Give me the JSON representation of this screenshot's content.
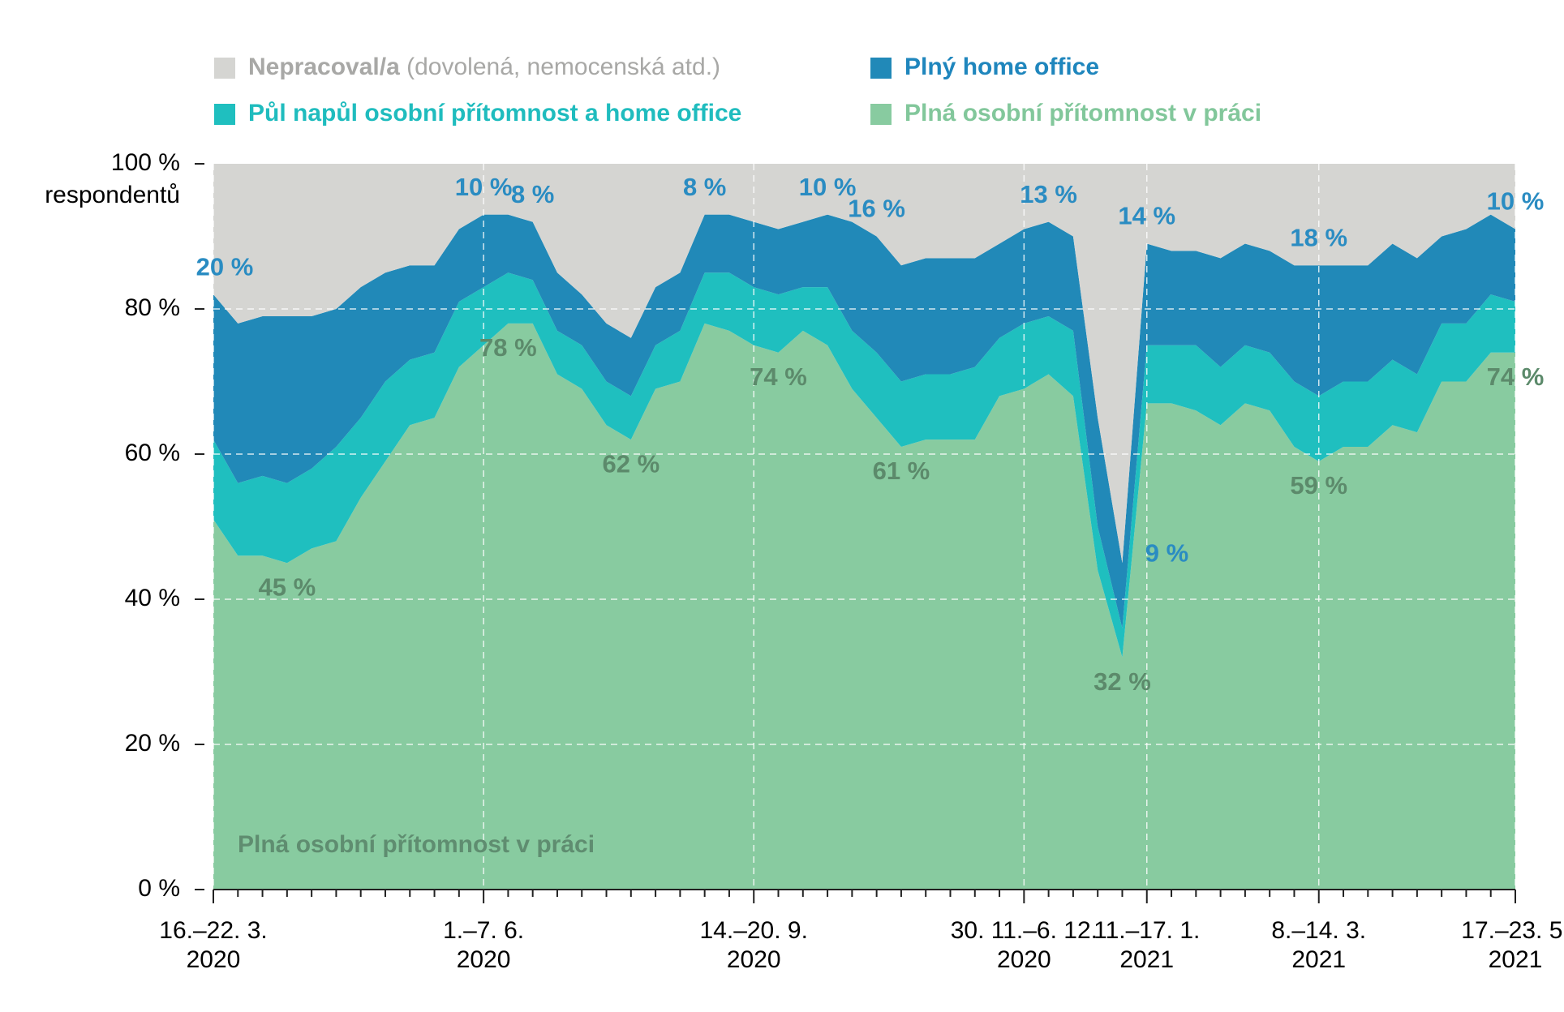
{
  "chart_data": {
    "type": "stacked-area",
    "y_label": "respondentů",
    "annotation": "Plná osobní přítomnost v práci",
    "categories": [
      [
        "16.–22. 3.",
        "2020"
      ],
      null,
      null,
      null,
      null,
      null,
      null,
      null,
      null,
      null,
      null,
      [
        "1.–7. 6.",
        "2020"
      ],
      null,
      null,
      null,
      null,
      null,
      null,
      null,
      null,
      null,
      null,
      [
        "14.–20. 9.",
        "2020"
      ],
      null,
      null,
      null,
      null,
      null,
      null,
      null,
      null,
      null,
      null,
      [
        "30. 11.–6. 12.",
        "2020"
      ],
      null,
      null,
      null,
      null,
      [
        "11.–17. 1.",
        "2021"
      ],
      null,
      null,
      null,
      null,
      null,
      null,
      [
        "8.–14. 3.",
        "2021"
      ],
      null,
      null,
      null,
      null,
      null,
      null,
      null,
      [
        "17.–23. 5.",
        "2021"
      ]
    ],
    "series": [
      {
        "name": "Plná osobní přítomnost v práci",
        "color": "#88cba0",
        "label_color": "#5c8a6b",
        "legend_color": "#82c79b",
        "values": [
          51,
          46,
          46,
          45,
          47,
          48,
          54,
          59,
          64,
          65,
          72,
          75,
          78,
          78,
          71,
          69,
          64,
          62,
          69,
          70,
          78,
          77,
          75,
          74,
          77,
          75,
          69,
          65,
          61,
          62,
          62,
          62,
          68,
          69,
          71,
          68,
          44,
          32,
          67,
          67,
          66,
          64,
          67,
          66,
          61,
          59,
          61,
          61,
          64,
          63,
          70,
          70,
          74,
          74
        ],
        "value_labels": [
          null,
          null,
          null,
          "45 %",
          null,
          null,
          null,
          null,
          null,
          null,
          null,
          null,
          "78 %",
          null,
          null,
          null,
          null,
          "62 %",
          null,
          null,
          null,
          null,
          null,
          "74 %",
          null,
          null,
          null,
          null,
          "61 %",
          null,
          null,
          null,
          null,
          null,
          null,
          null,
          null,
          "32 %",
          null,
          null,
          null,
          null,
          null,
          null,
          null,
          "59 %",
          null,
          null,
          null,
          null,
          null,
          null,
          null,
          "74 %"
        ]
      },
      {
        "name": "Půl napůl osobní přítomnost a home office",
        "color": "#1fbfbf",
        "legend_color": "#1fbcbe",
        "values": [
          11,
          10,
          11,
          11,
          11,
          13,
          11,
          11,
          9,
          9,
          9,
          8,
          7,
          6,
          6,
          6,
          6,
          6,
          6,
          7,
          7,
          8,
          8,
          8,
          6,
          8,
          8,
          9,
          9,
          9,
          9,
          10,
          8,
          9,
          8,
          9,
          6,
          4,
          8,
          8,
          9,
          8,
          8,
          8,
          9,
          9,
          9,
          9,
          9,
          8,
          8,
          8,
          8,
          7
        ]
      },
      {
        "name": "Plný home office",
        "color": "#2189b8",
        "label_color": "#2a8cc2",
        "legend_color": "#1f86bd",
        "values": [
          20,
          22,
          22,
          23,
          21,
          19,
          18,
          15,
          13,
          12,
          10,
          10,
          8,
          8,
          8,
          7,
          8,
          8,
          8,
          8,
          8,
          8,
          9,
          9,
          9,
          10,
          15,
          16,
          16,
          16,
          16,
          15,
          13,
          13,
          13,
          13,
          15,
          9,
          14,
          13,
          13,
          15,
          14,
          14,
          16,
          18,
          16,
          16,
          16,
          16,
          12,
          13,
          11,
          10
        ],
        "value_labels": [
          "20 %",
          null,
          null,
          null,
          null,
          null,
          null,
          null,
          null,
          null,
          null,
          "10 %",
          null,
          "8 %",
          null,
          null,
          null,
          null,
          null,
          null,
          "8 %",
          null,
          null,
          null,
          null,
          "10 %",
          null,
          "16 %",
          null,
          null,
          null,
          null,
          null,
          null,
          "13 %",
          null,
          null,
          "9 %",
          "14 %",
          null,
          null,
          null,
          null,
          null,
          null,
          "18 %",
          null,
          null,
          null,
          null,
          null,
          null,
          null,
          "10 %"
        ]
      },
      {
        "name": "Nepracoval/a",
        "name_note": "(dovolená, nemocenská atd.)",
        "color": "#d5d5d2",
        "legend_color": "#a8a8a6",
        "values": [
          18,
          22,
          21,
          21,
          21,
          20,
          17,
          15,
          14,
          14,
          9,
          7,
          7,
          8,
          15,
          18,
          22,
          24,
          17,
          15,
          7,
          7,
          8,
          9,
          8,
          7,
          8,
          10,
          14,
          13,
          13,
          13,
          11,
          9,
          8,
          10,
          35,
          55,
          11,
          12,
          12,
          13,
          11,
          12,
          14,
          14,
          14,
          14,
          11,
          13,
          10,
          9,
          7,
          9
        ]
      }
    ],
    "ylim": [
      0,
      100
    ],
    "yticks": [
      {
        "value": 0,
        "label": "0 %"
      },
      {
        "value": 20,
        "label": "20 %"
      },
      {
        "value": 40,
        "label": "40 %"
      },
      {
        "value": 60,
        "label": "60 %"
      },
      {
        "value": 80,
        "label": "80 %"
      },
      {
        "value": 100,
        "label": "100 %"
      }
    ],
    "grid": true
  }
}
